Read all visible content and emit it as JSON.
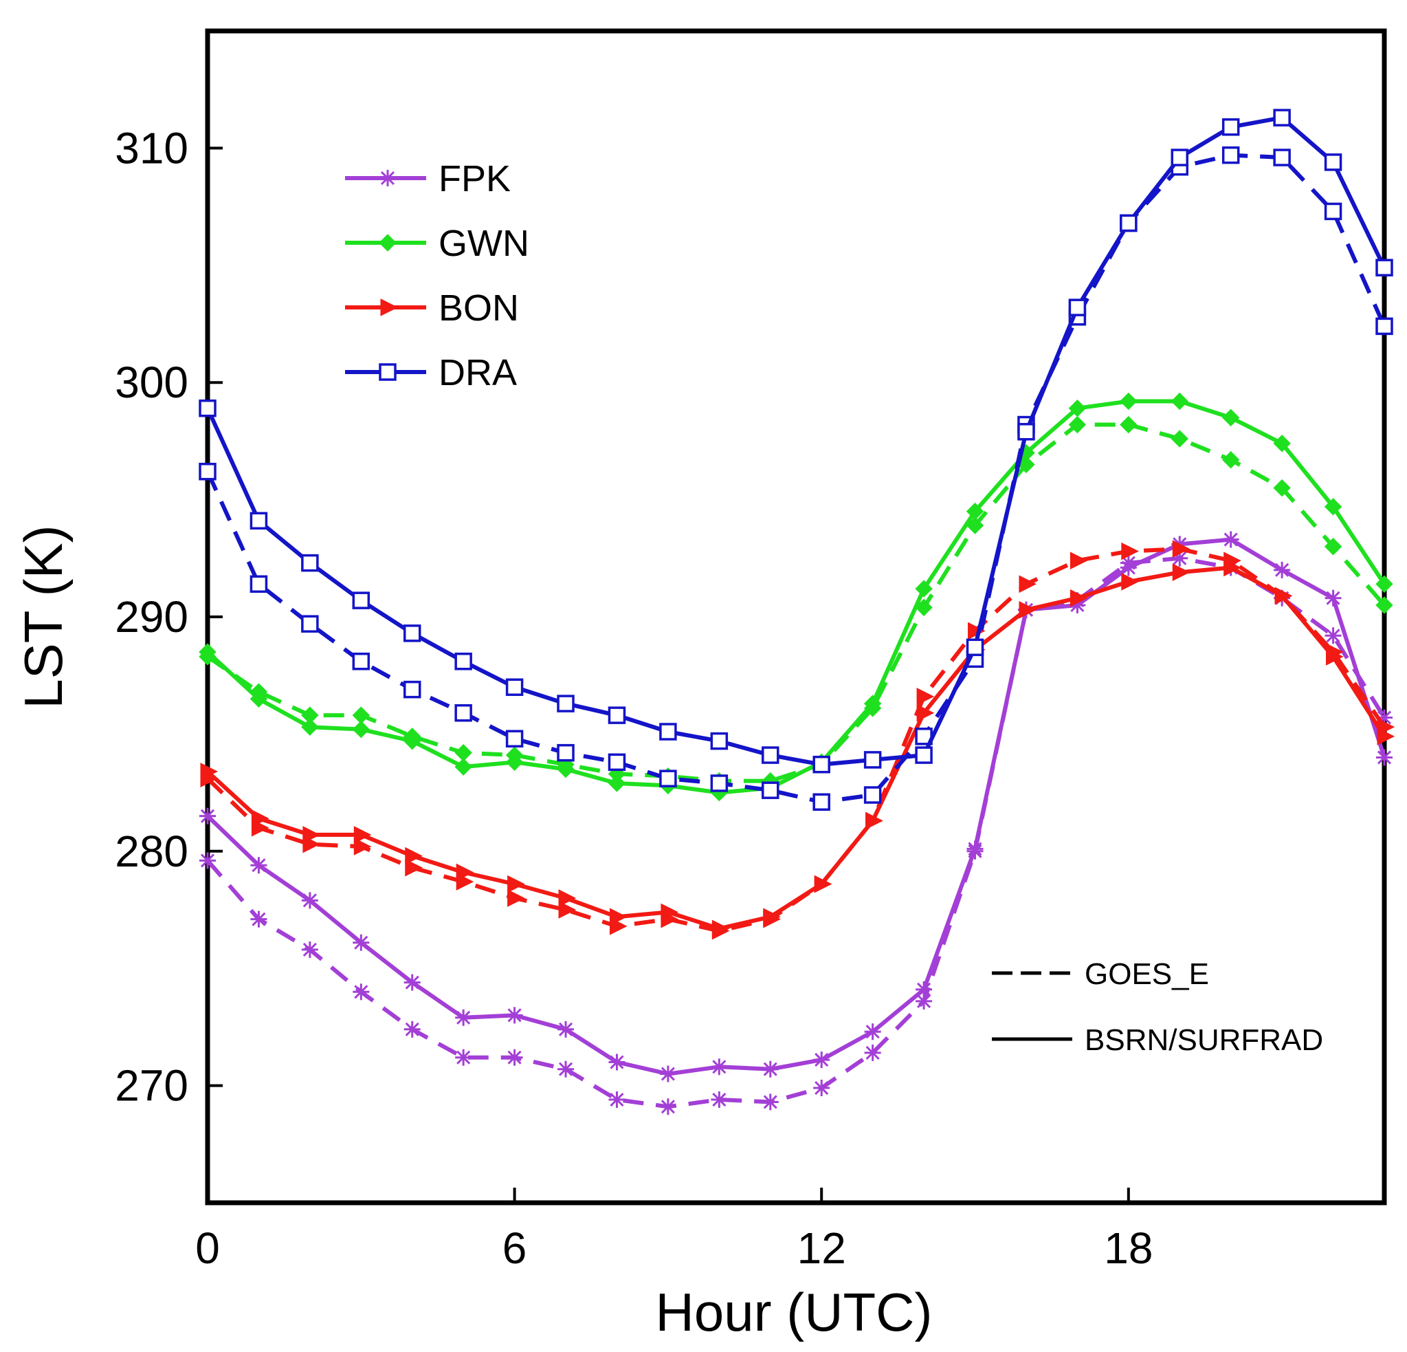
{
  "chart_data": {
    "type": "line",
    "title": "",
    "xlabel": "Hour (UTC)",
    "ylabel": "LST (K)",
    "xlim": [
      0,
      23
    ],
    "ylim": [
      265,
      315
    ],
    "xticks": [
      0,
      6,
      12,
      18
    ],
    "yticks": [
      270,
      280,
      290,
      300,
      310
    ],
    "line_styles": [
      {
        "key": "dashed",
        "label": "GOES_E"
      },
      {
        "key": "solid",
        "label": "BSRN/SURFRAD"
      }
    ],
    "stations": [
      {
        "name": "FPK",
        "color": "#A33FD6",
        "marker": "star",
        "solid": [
          281.5,
          279.4,
          277.9,
          276.1,
          274.4,
          272.9,
          273.0,
          272.4,
          271.0,
          270.5,
          270.8,
          270.7,
          271.1,
          272.3,
          274.1,
          280.1,
          290.3,
          290.5,
          292.1,
          293.1,
          293.3,
          292.0,
          290.8,
          284.0
        ],
        "dashed": [
          279.6,
          277.1,
          275.8,
          274.0,
          272.4,
          271.2,
          271.2,
          270.7,
          269.4,
          269.1,
          269.4,
          269.3,
          269.9,
          271.4,
          273.6,
          280.0,
          290.3,
          290.7,
          292.3,
          292.5,
          292.1,
          290.8,
          289.2,
          285.7
        ]
      },
      {
        "name": "GWN",
        "color": "#1FE01F",
        "marker": "diamond",
        "solid": [
          288.5,
          286.5,
          285.3,
          285.2,
          284.7,
          283.6,
          283.8,
          283.5,
          282.9,
          282.8,
          282.5,
          282.7,
          283.8,
          286.3,
          291.2,
          294.5,
          297.0,
          298.9,
          299.2,
          299.2,
          298.5,
          297.4,
          294.7,
          291.4
        ],
        "dashed": [
          288.3,
          286.8,
          285.8,
          285.8,
          284.9,
          284.2,
          284.1,
          283.7,
          283.3,
          283.2,
          283.0,
          283.0,
          283.7,
          286.1,
          290.4,
          293.9,
          296.5,
          298.2,
          298.2,
          297.6,
          296.7,
          295.5,
          293.0,
          290.5
        ]
      },
      {
        "name": "BON",
        "color": "#F21A14",
        "marker": "triangle",
        "solid": [
          283.4,
          281.4,
          280.7,
          280.7,
          279.8,
          279.1,
          278.6,
          278.0,
          277.2,
          277.4,
          276.7,
          277.2,
          278.6,
          281.3,
          285.9,
          288.6,
          290.3,
          290.8,
          291.5,
          291.9,
          292.1,
          290.9,
          288.3,
          284.9
        ],
        "dashed": [
          283.1,
          281.0,
          280.3,
          280.2,
          279.3,
          278.7,
          278.0,
          277.5,
          276.8,
          277.1,
          276.6,
          277.1,
          278.6,
          281.3,
          286.6,
          289.4,
          291.4,
          292.4,
          292.8,
          292.9,
          292.4,
          290.9,
          288.5,
          285.3
        ]
      },
      {
        "name": "DRA",
        "color": "#1414C8",
        "marker": "square",
        "solid": [
          298.9,
          294.1,
          292.3,
          290.7,
          289.3,
          288.1,
          287.0,
          286.3,
          285.8,
          285.1,
          284.7,
          284.1,
          283.7,
          283.9,
          284.1,
          288.7,
          297.9,
          303.2,
          306.8,
          309.6,
          310.9,
          311.3,
          309.4,
          304.9
        ],
        "dashed": [
          296.2,
          291.4,
          289.7,
          288.1,
          286.9,
          285.9,
          284.8,
          284.2,
          283.8,
          283.1,
          282.9,
          282.6,
          282.1,
          282.4,
          284.9,
          288.2,
          298.2,
          302.8,
          306.8,
          309.2,
          309.7,
          309.6,
          307.3,
          302.4
        ]
      }
    ]
  }
}
